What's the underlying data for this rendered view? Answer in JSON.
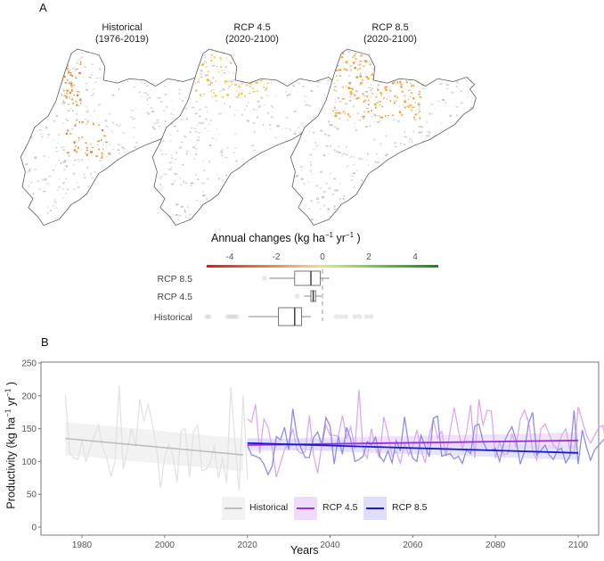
{
  "panel_a": {
    "label": "A",
    "maps": [
      {
        "title": "Historical",
        "subtitle": "(1976-2019)",
        "dominant_change": "mixed red-orange, sparse"
      },
      {
        "title": "RCP 4.5",
        "subtitle": "(2020-2100)",
        "dominant_change": "light orange in north"
      },
      {
        "title": "RCP 8.5",
        "subtitle": "(2020-2100)",
        "dominant_change": "orange in north"
      }
    ],
    "scale": {
      "title": "Annual changes (kg  ha",
      "title_sup1": "−1",
      "title_mid": " yr",
      "title_sup2": "−1",
      "title_end": " )",
      "ticks": [
        "-4",
        "-2",
        "0",
        "2",
        "4"
      ],
      "colors": {
        "negative": "#e8141a",
        "mid_neg": "#f0d080",
        "zero": "#f5f0a0",
        "mid_pos": "#b8e860",
        "positive": "#128a12"
      }
    }
  },
  "chart_data": [
    {
      "type": "boxplot",
      "title": "Annual changes (kg ha-1 yr-1)",
      "xlim": [
        -5,
        5
      ],
      "xticks": [
        -4,
        -2,
        0,
        2,
        4
      ],
      "reference_line": 0,
      "categories": [
        "RCP 8.5",
        "RCP 4.5",
        "Historical"
      ],
      "boxes": [
        {
          "name": "RCP 8.5",
          "whisker_low": -2.3,
          "q1": -1.2,
          "median": -0.5,
          "q3": -0.1,
          "whisker_high": 0.3,
          "outliers": [
            -2.5
          ]
        },
        {
          "name": "RCP 4.5",
          "whisker_low": -0.8,
          "q1": -0.5,
          "median": -0.4,
          "q3": -0.3,
          "whisker_high": -0.05,
          "outliers": [
            -1.1
          ]
        },
        {
          "name": "Historical",
          "whisker_low": -3.2,
          "q1": -1.9,
          "median": -1.2,
          "q3": -0.9,
          "whisker_high": -0.5,
          "outliers": [
            -5.0,
            -4.9,
            -4.1,
            -4.0,
            -3.9,
            -3.8,
            -3.7,
            0.6,
            0.8,
            1.0,
            1.4,
            1.6,
            1.9,
            2.1
          ]
        }
      ]
    },
    {
      "type": "line",
      "panel_label": "B",
      "xlabel": "Years",
      "ylabel": "Productivity (kg  ha",
      "ylabel_sup1": "−1",
      "ylabel_mid": " yr",
      "ylabel_sup2": "−1",
      "ylabel_end": " )",
      "xlim": [
        1970,
        2106
      ],
      "ylim": [
        -10,
        250
      ],
      "xticks": [
        1980,
        2000,
        2020,
        2040,
        2060,
        2080,
        2100
      ],
      "yticks": [
        0,
        50,
        100,
        150,
        200,
        250
      ],
      "grid": false,
      "legend_position": "bottom-center",
      "series": [
        {
          "name": "Historical",
          "color": "#bdbdbd",
          "raw_color": "#e0e0e0",
          "band_color": "#eeeeee",
          "x_start": 1976,
          "values": [
            201,
            113,
            106,
            103,
            132,
            99,
            121,
            138,
            157,
            121,
            106,
            77,
            100,
            216,
            88,
            120,
            150,
            123,
            195,
            161,
            188,
            158,
            122,
            59,
            106,
            127,
            109,
            68,
            147,
            150,
            76,
            146,
            155,
            86,
            88,
            98,
            124,
            74,
            106,
            67,
            213,
            130,
            56,
            201,
            72
          ],
          "trend": {
            "x": [
              1976,
              2019
            ],
            "y": [
              135,
              110
            ],
            "ci_low": [
              110,
              85
            ],
            "ci_high": [
              160,
              135
            ]
          }
        },
        {
          "name": "RCP 4.5",
          "color": "#9b30e0",
          "raw_color": "#d8a0f0",
          "band_color": "#ecd8fa",
          "x_start": 2020,
          "values": [
            165,
            160,
            187,
            112,
            165,
            152,
            120,
            76,
            97,
            118,
            128,
            150,
            118,
            112,
            115,
            170,
            110,
            82,
            124,
            155,
            140,
            140,
            138,
            170,
            135,
            153,
            120,
            209,
            117,
            105,
            150,
            120,
            105,
            168,
            142,
            108,
            116,
            97,
            128,
            110,
            123,
            148,
            118,
            98,
            140,
            165,
            135,
            146,
            108,
            145,
            182,
            148,
            118,
            145,
            186,
            105,
            195,
            155,
            178,
            177,
            105,
            130,
            110,
            112,
            142,
            122,
            164,
            178,
            160,
            117,
            102,
            150,
            157,
            142,
            125,
            118,
            140,
            150,
            118,
            112,
            183,
            162,
            140,
            128,
            140,
            152,
            155,
            120,
            118,
            142,
            152,
            120,
            147,
            125,
            118,
            142,
            118,
            155,
            130,
            132,
            90
          ],
          "trend": {
            "x": [
              2020,
              2100
            ],
            "y": [
              125,
              132
            ],
            "ci_low": [
              116,
              120
            ],
            "ci_high": [
              134,
              144
            ]
          }
        },
        {
          "name": "RCP 8.5",
          "color": "#1a1ad0",
          "raw_color": "#8080f0",
          "band_color": "#dcdcf8",
          "x_start": 2020,
          "values": [
            125,
            110,
            108,
            105,
            96,
            80,
            93,
            138,
            133,
            152,
            118,
            180,
            138,
            120,
            106,
            106,
            136,
            145,
            125,
            167,
            154,
            96,
            138,
            111,
            152,
            133,
            100,
            103,
            108,
            130,
            125,
            137,
            108,
            100,
            116,
            98,
            132,
            116,
            168,
            126,
            105,
            100,
            140,
            123,
            107,
            166,
            169,
            108,
            110,
            112,
            104,
            108,
            97,
            118,
            112,
            154,
            157,
            130,
            117,
            117,
            120,
            100,
            128,
            142,
            153,
            132,
            96,
            115,
            158,
            175,
            110,
            117,
            125,
            110,
            103,
            117,
            120,
            98,
            108,
            178,
            96,
            148,
            122,
            102,
            118,
            125,
            132,
            138,
            110,
            100,
            111,
            111,
            118,
            116,
            88,
            126,
            83,
            125,
            108,
            108,
            104
          ],
          "trend": {
            "x": [
              2020,
              2100
            ],
            "y": [
              128,
              113
            ],
            "ci_low": [
              120,
              102
            ],
            "ci_high": [
              136,
              124
            ]
          }
        }
      ]
    }
  ]
}
